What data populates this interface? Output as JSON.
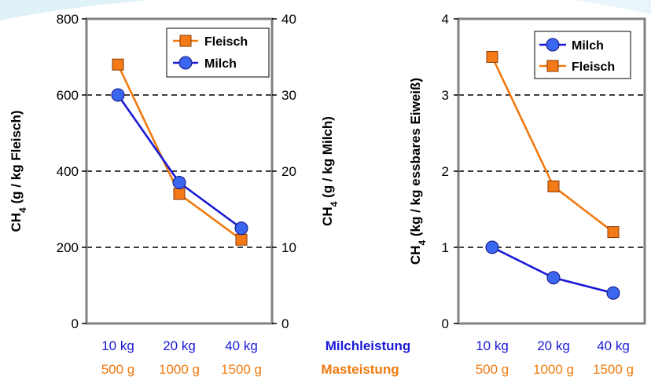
{
  "colors": {
    "milch": "#1a1ad6",
    "fleisch": "#f07a0f",
    "milch_marker": "#3a66f0",
    "fleisch_marker": "#f47a18",
    "frame": "#808080",
    "grid": "#000000",
    "deco": "#dff2f8"
  },
  "chart_data": [
    {
      "type": "line",
      "categories": [
        "10 kg",
        "20 kg",
        "40 kg"
      ],
      "category_labels_secondary": [
        "500 g",
        "1000 g",
        "1500 g"
      ],
      "category_axis_names": {
        "primary": "Milchleistung",
        "secondary": "Masteistung"
      },
      "ylabel": "CH4 (g / kg Fleisch)",
      "ylabel_right": "CH4 (g / kg Milch)",
      "ylim": [
        0,
        800
      ],
      "ylim_right": [
        0,
        40
      ],
      "yticks": [
        "0",
        "200",
        "400",
        "600",
        "800"
      ],
      "yticks_right": [
        "0",
        "10",
        "20",
        "30",
        "40"
      ],
      "grid": "horizontal dashed",
      "legend_placement": "top-right",
      "series": [
        {
          "name": "Fleisch",
          "key": "fleisch",
          "marker": "square",
          "axis": "left",
          "values": [
            680,
            340,
            220
          ]
        },
        {
          "name": "Milch",
          "key": "milch",
          "marker": "circle",
          "axis": "right",
          "values": [
            30,
            18.5,
            12.5
          ]
        }
      ]
    },
    {
      "type": "line",
      "categories": [
        "10 kg",
        "20 kg",
        "40 kg"
      ],
      "category_labels_secondary": [
        "500 g",
        "1000 g",
        "1500 g"
      ],
      "ylabel": "CH4 (kg / kg  essbares Eiweiß)",
      "ylim": [
        0,
        4
      ],
      "yticks": [
        "0",
        "1",
        "2",
        "3",
        "4"
      ],
      "grid": "horizontal dashed",
      "legend_placement": "top-right",
      "series": [
        {
          "name": "Milch",
          "key": "milch",
          "marker": "circle",
          "values": [
            1.0,
            0.6,
            0.4
          ]
        },
        {
          "name": "Fleisch",
          "key": "fleisch",
          "marker": "square",
          "values": [
            3.5,
            1.8,
            1.2
          ]
        }
      ]
    }
  ]
}
